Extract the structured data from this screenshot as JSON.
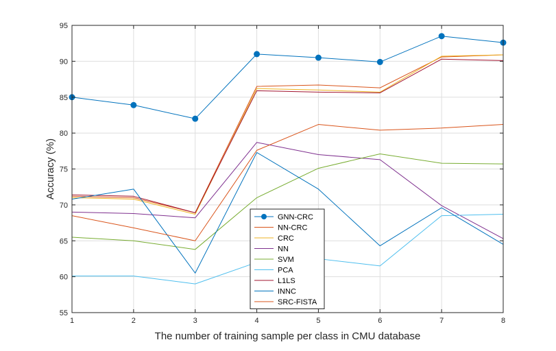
{
  "chart_data": {
    "type": "line",
    "title": "",
    "xlabel": "The number of training sample per class in CMU database",
    "ylabel": "Accuracy (%)",
    "x": [
      1,
      2,
      3,
      4,
      5,
      6,
      7,
      8
    ],
    "xlim": [
      1,
      8
    ],
    "ylim": [
      55,
      95
    ],
    "xticks": [
      1,
      2,
      3,
      4,
      5,
      6,
      7,
      8
    ],
    "yticks": [
      55,
      60,
      65,
      70,
      75,
      80,
      85,
      90,
      95
    ],
    "grid": true,
    "legend_position": "lower-center",
    "series": [
      {
        "name": "GNN-CRC",
        "color": "#0072BD",
        "marker": "circle",
        "values": [
          85.0,
          83.9,
          82.0,
          91.0,
          90.5,
          89.9,
          93.5,
          92.6
        ]
      },
      {
        "name": "NN-CRC",
        "color": "#D95319",
        "marker": "none",
        "values": [
          71.2,
          71.0,
          68.9,
          86.5,
          86.7,
          86.3,
          90.6,
          90.9
        ]
      },
      {
        "name": "CRC",
        "color": "#EDB120",
        "marker": "none",
        "values": [
          71.0,
          70.8,
          68.7,
          86.2,
          86.0,
          85.7,
          90.7,
          90.9
        ]
      },
      {
        "name": "NN",
        "color": "#7E2F8E",
        "marker": "none",
        "values": [
          69.0,
          68.8,
          68.2,
          78.7,
          77.0,
          76.3,
          69.9,
          65.3
        ]
      },
      {
        "name": "SVM",
        "color": "#77AC30",
        "marker": "none",
        "values": [
          65.5,
          65.0,
          63.8,
          71.0,
          75.1,
          77.1,
          75.8,
          75.7
        ]
      },
      {
        "name": "PCA",
        "color": "#4DBEEE",
        "marker": "none",
        "values": [
          60.1,
          60.1,
          59.0,
          62.0,
          62.5,
          61.5,
          68.5,
          68.7
        ]
      },
      {
        "name": "L1LS",
        "color": "#A2142F",
        "marker": "none",
        "values": [
          71.4,
          71.2,
          68.9,
          85.9,
          85.7,
          85.6,
          90.3,
          90.1
        ]
      },
      {
        "name": "INNC",
        "color": "#0072BD",
        "marker": "none",
        "values": [
          70.8,
          72.2,
          60.5,
          77.3,
          72.2,
          64.3,
          69.6,
          64.5
        ]
      },
      {
        "name": "SRC-FISTA",
        "color": "#D95319",
        "marker": "none",
        "values": [
          68.5,
          66.8,
          65.0,
          77.6,
          81.2,
          80.4,
          80.7,
          81.2
        ]
      }
    ]
  }
}
